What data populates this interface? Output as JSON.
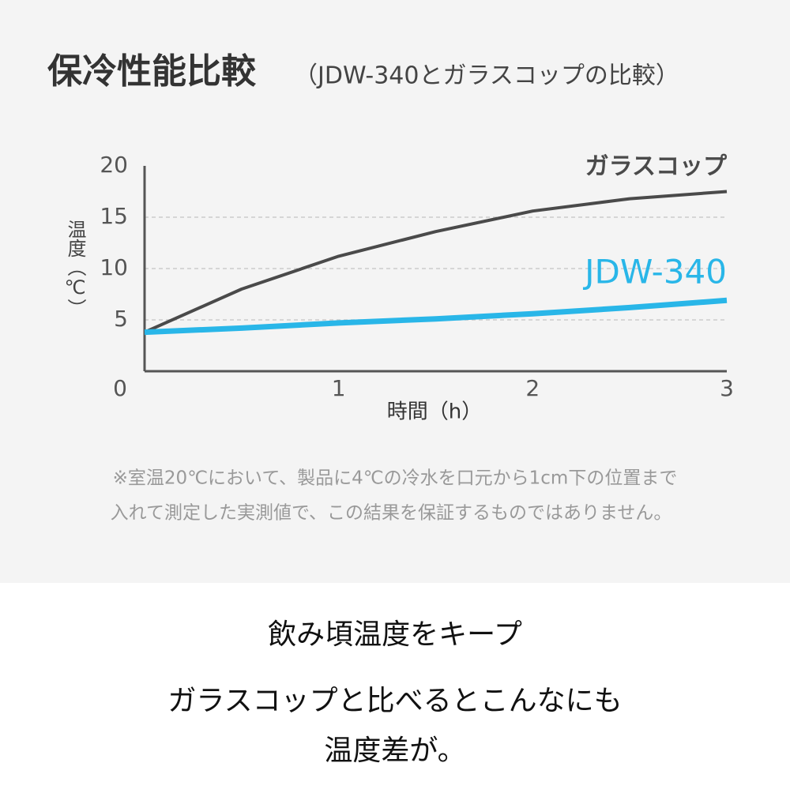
{
  "chart_data": {
    "type": "line",
    "title": "保冷性能比較",
    "subtitle": "（JDW-340とガラスコップの比較）",
    "y_label": "温度（℃）",
    "x_label": "時間（h）",
    "x": [
      0,
      0.5,
      1,
      1.5,
      2,
      2.5,
      3
    ],
    "series": [
      {
        "name": "ガラスコップ",
        "color": "#4a4a4a",
        "values": [
          3.8,
          8.0,
          11.2,
          13.6,
          15.6,
          16.8,
          17.5
        ]
      },
      {
        "name": "JDW-340",
        "color": "#29b6e8",
        "values": [
          3.8,
          4.2,
          4.7,
          5.1,
          5.6,
          6.2,
          6.9
        ]
      }
    ],
    "xlim": [
      0,
      3
    ],
    "xticks": [
      0,
      1,
      2,
      3
    ],
    "ylim": [
      0,
      20
    ],
    "yticks": [
      5,
      10,
      15,
      20
    ],
    "grid": true,
    "notes": [
      "※室温20℃において、製品に4℃の冷水を口元から1cm下の位置まで",
      "入れて測定した実測値で、この結果を保証するものではありません。"
    ]
  },
  "caption": {
    "lines": [
      "飲み頃温度をキープ",
      "ガラスコップと比べるとこんなにも",
      "温度差が。"
    ]
  }
}
